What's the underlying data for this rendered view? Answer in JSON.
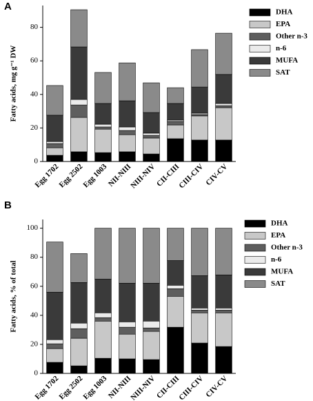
{
  "chart_data": [
    {
      "type": "stacked_bar",
      "panel_label": "A",
      "y_label": "Fatty acids, mg g⁻¹ DW",
      "categories": [
        "Egg 1702",
        "Egg 2502",
        "Egg 1003",
        "NII-NIII",
        "NIII-NIV",
        "CII-CIII",
        "CIII-CIV",
        "CIV-CV"
      ],
      "series": [
        {
          "name": "DHA",
          "color": "#000000",
          "values": [
            3.7,
            5.8,
            5.3,
            5.8,
            4.5,
            13.6,
            12.8,
            12.8
          ]
        },
        {
          "name": "EPA",
          "color": "#c8c8c8",
          "values": [
            4.5,
            20.5,
            14,
            10.2,
            9.5,
            8.2,
            14.4,
            19.3
          ]
        },
        {
          "name": "Other n-3",
          "color": "#5e5e5e",
          "values": [
            2.5,
            7.4,
            1.3,
            2.5,
            1.6,
            2.1,
            0.8,
            1.2
          ]
        },
        {
          "name": "n-6",
          "color": "#ebebeb",
          "values": [
            1.2,
            3.3,
            1.6,
            2.1,
            1.3,
            0.8,
            0.8,
            1.3
          ]
        },
        {
          "name": "MUFA",
          "color": "#3a3a3a",
          "values": [
            15.7,
            31.3,
            12.4,
            15.6,
            12.3,
            9.9,
            15.6,
            17.3
          ]
        },
        {
          "name": "SAT",
          "color": "#8a8a8a",
          "values": [
            17.7,
            22.2,
            18.5,
            22.6,
            17.7,
            9.4,
            22.3,
            24.6
          ]
        }
      ],
      "ylim": [
        0,
        93
      ],
      "yticks": [
        0,
        20,
        40,
        60,
        80
      ],
      "legend": "upper right"
    },
    {
      "type": "stacked_bar",
      "panel_label": "B",
      "y_label": "Fatty acids, % of total",
      "categories": [
        "Egg 1702",
        "Egg 2502",
        "Egg 1003",
        "NII-NIII",
        "NIII-NIV",
        "CII-CIII",
        "CIII-CIV",
        "CIV-CV"
      ],
      "series": [
        {
          "name": "DHA",
          "color": "#000000",
          "values": [
            7.6,
            5.2,
            10.4,
            10,
            9.5,
            31.8,
            20.9,
            18.5
          ]
        },
        {
          "name": "EPA",
          "color": "#c8c8c8",
          "values": [
            9.5,
            19,
            25.6,
            17,
            19.4,
            21.3,
            20.8,
            23.2
          ]
        },
        {
          "name": "Other n-3",
          "color": "#5e5e5e",
          "values": [
            3.3,
            6.6,
            2.4,
            4.8,
            2.4,
            5.2,
            1.9,
            1.9
          ]
        },
        {
          "name": "n-6",
          "color": "#ebebeb",
          "values": [
            2.8,
            3.8,
            3.3,
            3.7,
            4.7,
            2.4,
            1.4,
            1.4
          ]
        },
        {
          "name": "MUFA",
          "color": "#3a3a3a",
          "values": [
            32.7,
            28,
            23.2,
            26.6,
            26.1,
            17,
            22.3,
            22.8
          ]
        },
        {
          "name": "SAT",
          "color": "#8a8a8a",
          "values": [
            34.6,
            19.9,
            35.1,
            37.9,
            37.9,
            22.3,
            32.7,
            32.2
          ]
        }
      ],
      "ylim": [
        0,
        106
      ],
      "yticks": [
        0,
        20,
        40,
        60,
        80,
        100
      ],
      "legend": "right"
    }
  ]
}
